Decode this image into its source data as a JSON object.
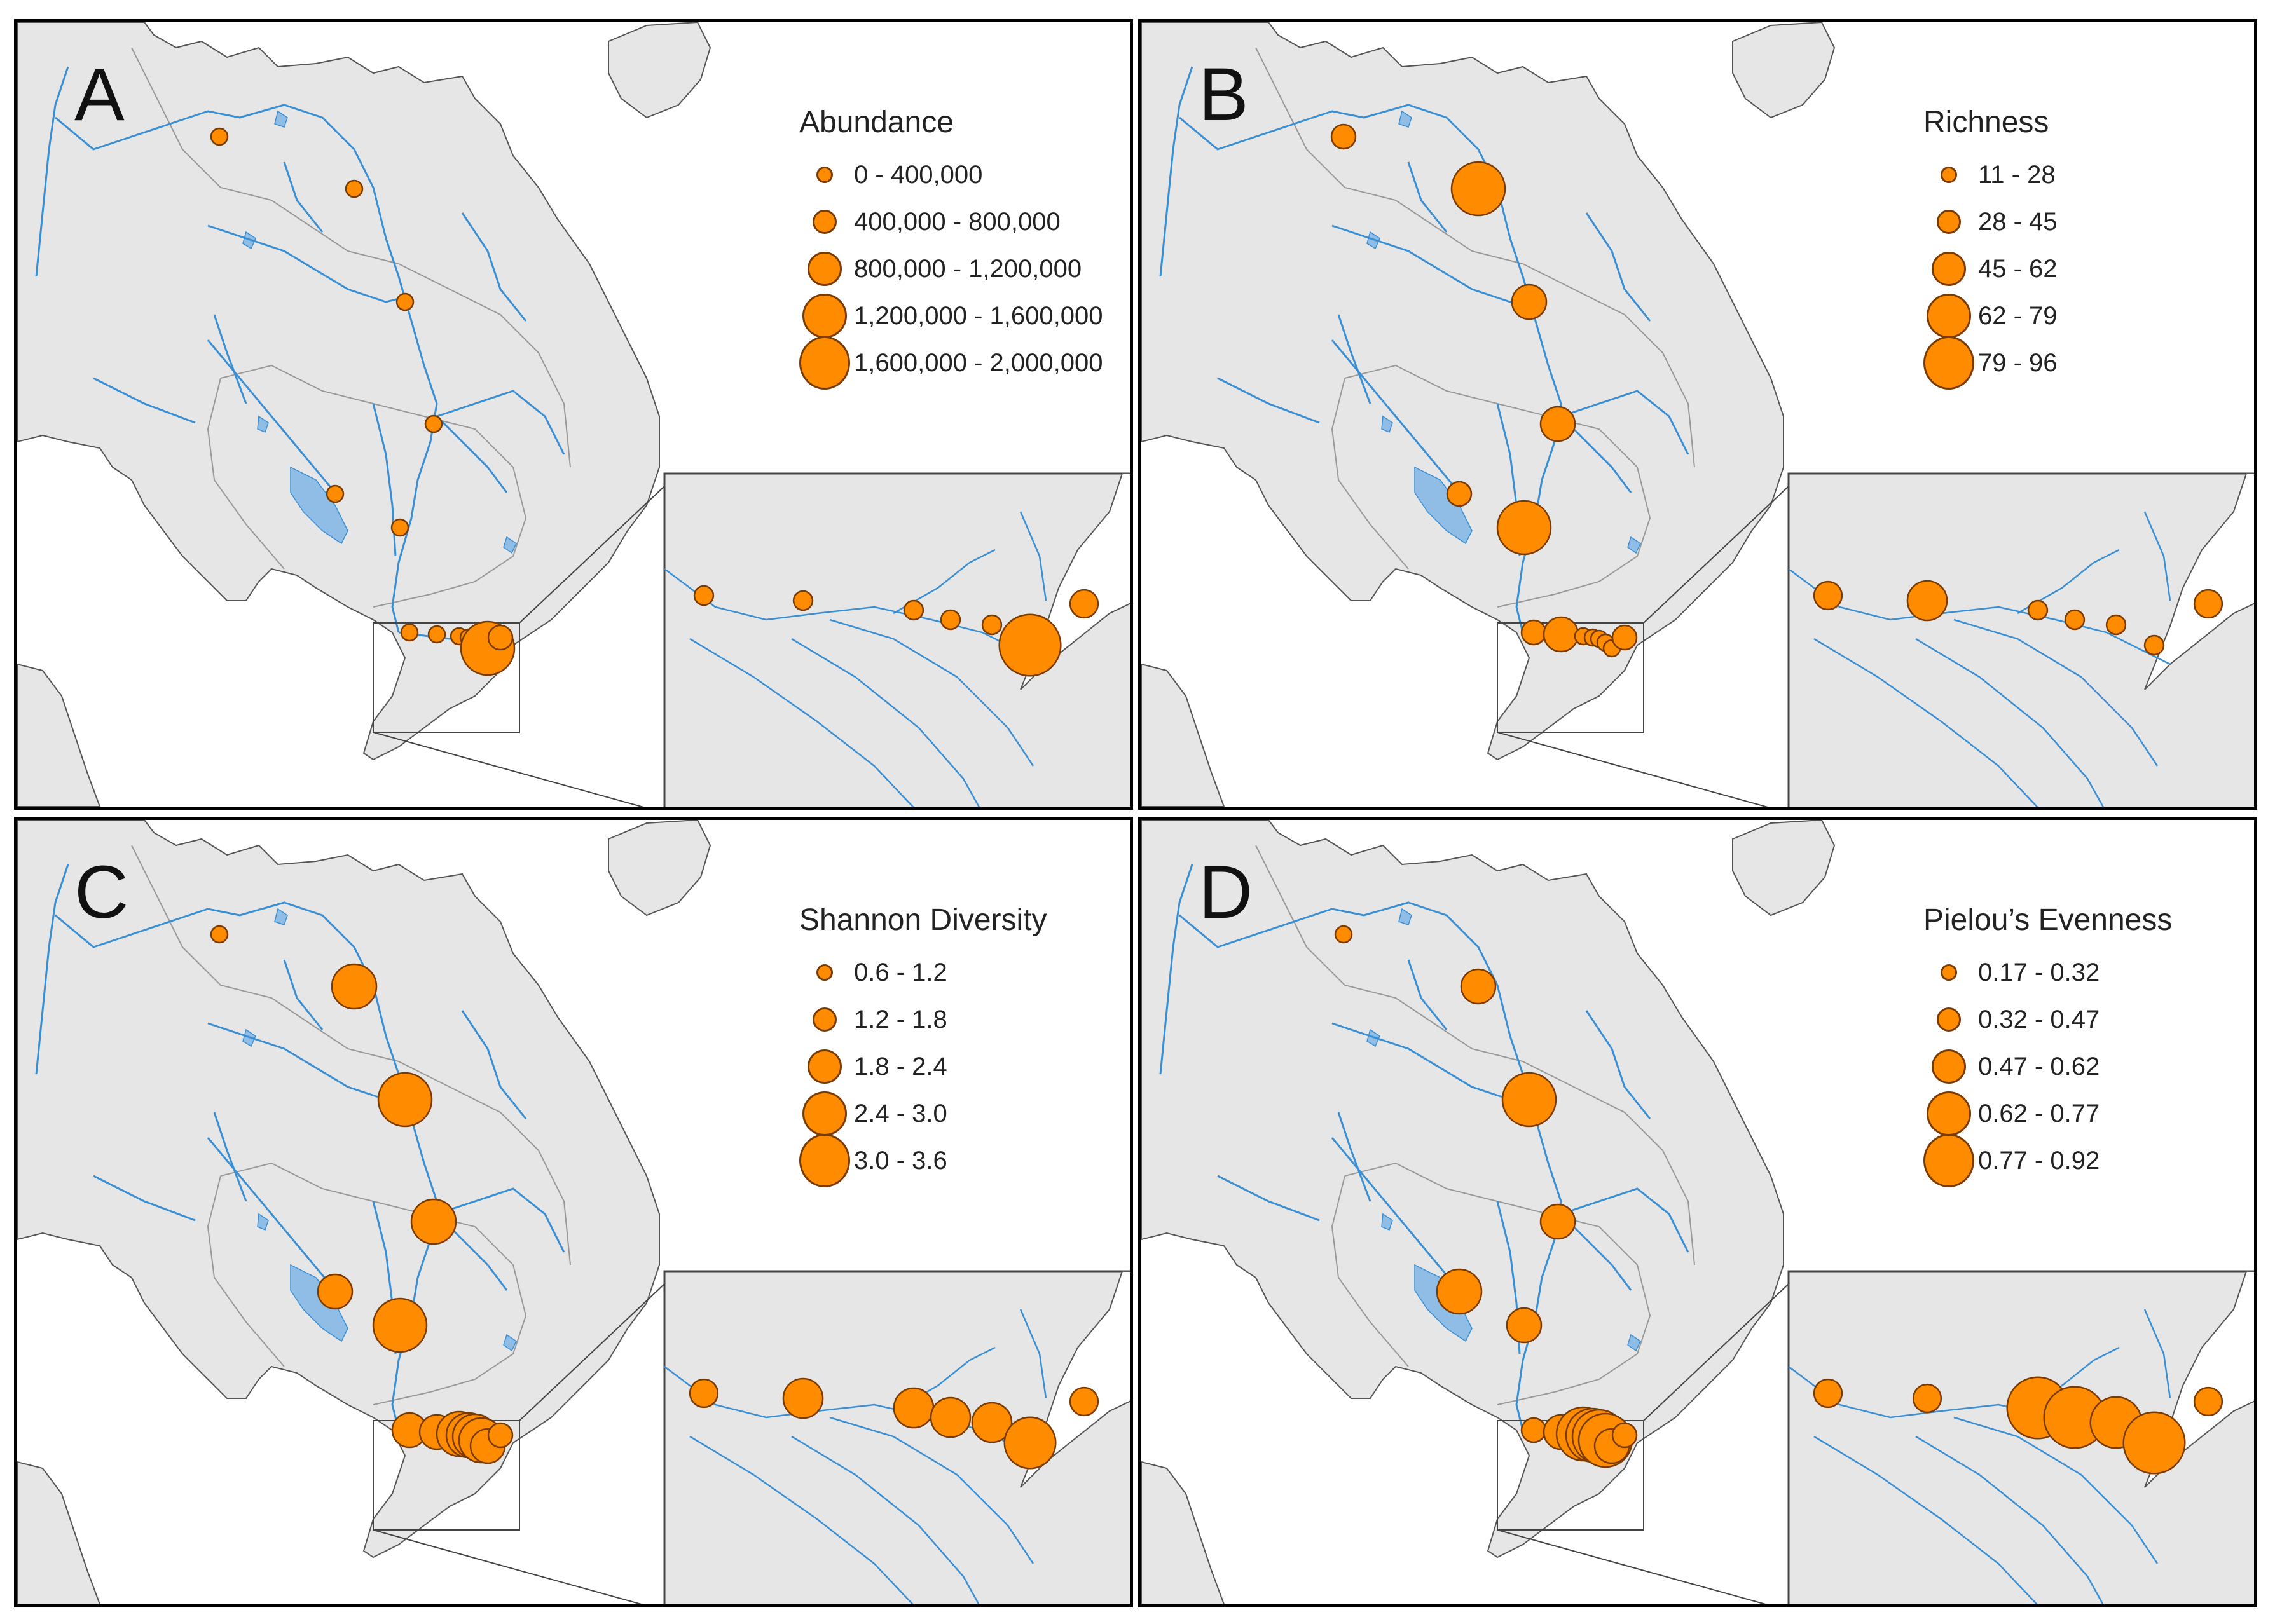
{
  "colors": {
    "land": "#e6e6e6",
    "water": "#ffffff",
    "river": "#3a8fd4",
    "lake": "#8fbde5",
    "point_fill": "#ff8c00",
    "point_stroke": "#7a3b00",
    "border": "#999999"
  },
  "panels": [
    {
      "letter": "A",
      "legend_title": "Abundance",
      "legend_items": [
        "0 - 400,000",
        "400,000 - 800,000",
        "800,000 - 1,200,000",
        "1,200,000 - 1,600,000",
        "1,600,000 - 2,000,000"
      ],
      "sites": [
        1,
        1,
        1,
        1,
        1,
        1,
        1,
        1,
        1,
        1,
        1,
        1,
        5,
        2
      ],
      "inset_sites": [
        1,
        1,
        1,
        1,
        1,
        5,
        2
      ]
    },
    {
      "letter": "B",
      "legend_title": "Richness",
      "legend_items": [
        "11 - 28",
        "28 - 45",
        "45 - 62",
        "62 - 79",
        "79 - 96"
      ],
      "sites": [
        2,
        5,
        3,
        3,
        2,
        5,
        2,
        3,
        1,
        1,
        1,
        1,
        1,
        2
      ],
      "inset_sites": [
        2,
        3,
        1,
        1,
        1,
        1,
        2
      ]
    },
    {
      "letter": "C",
      "legend_title": "Shannon Diversity",
      "legend_items": [
        "0.6 - 1.2",
        "1.2 - 1.8",
        "1.8 - 2.4",
        "2.4 - 3.0",
        "3.0 - 3.6"
      ],
      "sites": [
        1,
        4,
        5,
        4,
        3,
        5,
        3,
        3,
        4,
        4,
        4,
        4,
        3,
        2
      ],
      "inset_sites": [
        2,
        3,
        3,
        3,
        3,
        4,
        2
      ]
    },
    {
      "letter": "D",
      "legend_title": "Pielou’s Evenness",
      "legend_items": [
        "0.17 - 0.32",
        "0.32 - 0.47",
        "0.47 - 0.62",
        "0.62 - 0.77",
        "0.77 - 0.92"
      ],
      "sites": [
        1,
        3,
        5,
        3,
        4,
        3,
        2,
        3,
        5,
        5,
        5,
        5,
        3,
        2
      ],
      "inset_sites": [
        2,
        2,
        5,
        5,
        4,
        5,
        2
      ]
    }
  ]
}
